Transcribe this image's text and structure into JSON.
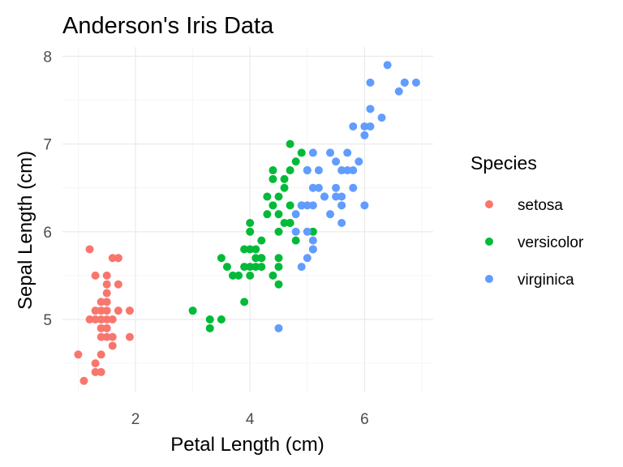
{
  "chart_data": {
    "type": "scatter",
    "title": "Anderson's Iris Data",
    "xlabel": "Petal Length (cm)",
    "ylabel": "Sepal Length (cm)",
    "xlim": [
      0.9,
      7.0
    ],
    "ylim": [
      4.3,
      7.9
    ],
    "xticks": [
      2,
      4,
      6
    ],
    "yticks": [
      5,
      6,
      7,
      8
    ],
    "grid": true,
    "legend": {
      "title": "Species",
      "position": "right"
    },
    "series": [
      {
        "name": "setosa",
        "color": "#F8766D",
        "x": [
          1.0,
          1.1,
          1.2,
          1.2,
          1.3,
          1.3,
          1.3,
          1.3,
          1.3,
          1.4,
          1.4,
          1.4,
          1.4,
          1.4,
          1.4,
          1.4,
          1.5,
          1.5,
          1.5,
          1.5,
          1.5,
          1.5,
          1.5,
          1.5,
          1.6,
          1.6,
          1.6,
          1.6,
          1.7,
          1.7,
          1.7,
          1.7,
          1.9,
          1.9
        ],
        "y": [
          4.6,
          4.3,
          5.8,
          5.0,
          4.4,
          4.5,
          5.0,
          5.1,
          5.5,
          4.4,
          4.6,
          4.8,
          4.9,
          5.0,
          5.1,
          5.2,
          4.8,
          4.9,
          5.0,
          5.1,
          5.2,
          5.3,
          5.4,
          5.5,
          4.7,
          4.8,
          5.0,
          5.7,
          5.1,
          5.4,
          5.7,
          5.7,
          4.8,
          5.1
        ]
      },
      {
        "name": "versicolor",
        "color": "#00BA38",
        "x": [
          3.0,
          3.3,
          3.3,
          3.5,
          3.5,
          3.6,
          3.7,
          3.8,
          3.9,
          3.9,
          3.9,
          4.0,
          4.0,
          4.0,
          4.0,
          4.0,
          4.1,
          4.1,
          4.1,
          4.2,
          4.2,
          4.2,
          4.2,
          4.3,
          4.3,
          4.4,
          4.4,
          4.4,
          4.4,
          4.5,
          4.5,
          4.5,
          4.5,
          4.5,
          4.5,
          4.6,
          4.6,
          4.6,
          4.7,
          4.7,
          4.7,
          4.7,
          4.7,
          4.8,
          4.8,
          4.9,
          4.9,
          5.0,
          5.1
        ],
        "y": [
          5.1,
          4.9,
          5.0,
          5.0,
          5.7,
          5.6,
          5.5,
          5.5,
          5.2,
          5.6,
          5.8,
          5.5,
          5.8,
          6.0,
          6.1,
          5.6,
          5.7,
          5.8,
          5.6,
          5.7,
          5.9,
          5.6,
          5.7,
          6.2,
          6.4,
          6.3,
          6.6,
          6.7,
          5.5,
          5.4,
          5.6,
          5.7,
          6.0,
          6.2,
          6.4,
          6.1,
          6.5,
          6.6,
          6.1,
          6.3,
          6.7,
          7.0,
          6.1,
          5.9,
          6.8,
          6.3,
          6.9,
          6.7,
          6.0
        ]
      },
      {
        "name": "virginica",
        "color": "#619CFF",
        "x": [
          4.5,
          4.8,
          4.8,
          4.9,
          4.9,
          5.0,
          5.0,
          5.0,
          5.0,
          5.1,
          5.1,
          5.1,
          5.1,
          5.1,
          5.1,
          5.2,
          5.2,
          5.3,
          5.3,
          5.4,
          5.4,
          5.5,
          5.5,
          5.5,
          5.6,
          5.6,
          5.6,
          5.6,
          5.7,
          5.7,
          5.8,
          5.8,
          5.8,
          5.9,
          6.0,
          6.0,
          6.0,
          6.1,
          6.1,
          6.1,
          6.3,
          6.4,
          6.6,
          6.7,
          6.7,
          6.9
        ],
        "y": [
          4.9,
          6.0,
          6.2,
          5.6,
          6.3,
          5.7,
          6.0,
          6.3,
          6.7,
          5.8,
          5.9,
          6.3,
          6.5,
          6.9,
          5.8,
          6.5,
          6.7,
          6.4,
          6.4,
          6.2,
          6.9,
          6.4,
          6.5,
          6.8,
          6.1,
          6.3,
          6.4,
          6.7,
          6.7,
          6.9,
          6.5,
          6.7,
          7.2,
          6.8,
          6.3,
          7.2,
          7.1,
          7.2,
          7.4,
          7.7,
          7.3,
          7.9,
          7.6,
          7.7,
          7.7,
          7.7
        ]
      }
    ]
  }
}
